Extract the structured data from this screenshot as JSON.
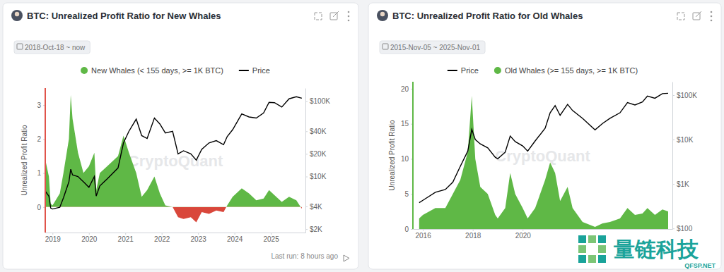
{
  "chart_data": [
    {
      "type": "area",
      "title": "BTC: Unrealized Profit Ratio for New Whales",
      "subtitle": "2018-Oct-18 ~ now",
      "y_label": "Unrealized Profit Ratio",
      "legend": "top",
      "log": "y2",
      "x": [
        2018.8,
        2018.9,
        2018.95,
        2019.0,
        2019.2,
        2019.3,
        2019.45,
        2019.5,
        2019.55,
        2019.7,
        2019.85,
        2020.0,
        2020.15,
        2020.2,
        2020.3,
        2020.5,
        2020.8,
        2020.95,
        2021.1,
        2021.3,
        2021.45,
        2021.6,
        2021.8,
        2021.95,
        2022.1,
        2022.3,
        2022.45,
        2022.6,
        2022.8,
        2022.95,
        2023.1,
        2023.3,
        2023.5,
        2023.7,
        2023.8,
        2023.95,
        2024.2,
        2024.4,
        2024.6,
        2024.8,
        2024.95,
        2025.1,
        2025.3,
        2025.5,
        2025.7,
        2025.85
      ],
      "series": [
        {
          "name": "New Whales (< 155 days, >= 1K BTC)",
          "type": "area",
          "colors": [
            "#5fb846",
            "#d9473b"
          ],
          "values": [
            1.4,
            0.9,
            0.1,
            0.05,
            0.4,
            1.0,
            2.0,
            3.3,
            2.6,
            1.6,
            1.0,
            1.2,
            1.6,
            0.5,
            1.0,
            1.2,
            1.5,
            2.1,
            1.6,
            1.0,
            0.3,
            0.5,
            0.9,
            0.4,
            0.05,
            0,
            -0.3,
            -0.35,
            -0.3,
            -0.45,
            -0.15,
            -0.2,
            -0.1,
            -0.15,
            0.05,
            0.3,
            0.55,
            0.4,
            0.2,
            0.25,
            0.5,
            0.35,
            0.15,
            0.3,
            0.2,
            -0.05
          ]
        },
        {
          "name": "Price",
          "type": "line",
          "color": "#000000",
          "axis": "y2",
          "values": [
            6400,
            5500,
            3800,
            3700,
            3900,
            5200,
            8500,
            12500,
            10500,
            10000,
            8500,
            7200,
            10000,
            5500,
            7500,
            9300,
            13000,
            28000,
            40000,
            58000,
            35000,
            32000,
            60000,
            50000,
            38000,
            40000,
            20000,
            22000,
            20000,
            16500,
            23000,
            28000,
            30000,
            26500,
            34000,
            42000,
            68000,
            62000,
            60000,
            70000,
            97000,
            96000,
            84000,
            108000,
            115000,
            110000
          ]
        }
      ],
      "xlim": [
        2018.8,
        2025.95
      ],
      "xticks": [
        2019,
        2020,
        2021,
        2022,
        2023,
        2024,
        2025
      ],
      "ylim": [
        -0.75,
        3.5
      ],
      "yticks": [
        0,
        1,
        2,
        3
      ],
      "y2lim": [
        1800,
        150000
      ],
      "y2ticks": [
        {
          "value": 2000,
          "label": "$2K"
        },
        {
          "value": 4000,
          "label": "$4K"
        },
        {
          "value": 10000,
          "label": "$10K"
        },
        {
          "value": 20000,
          "label": "$20K"
        },
        {
          "value": 40000,
          "label": "$40K"
        },
        {
          "value": 100000,
          "label": "$100K"
        }
      ],
      "annotations": [
        "CryptoQuant",
        "Last run: 8 hours ago"
      ]
    },
    {
      "type": "area",
      "title": "BTC: Unrealized Profit Ratio for Old Whales",
      "subtitle": "2015-Nov-05 ~ 2025-Nov-01",
      "y_label": "Unrealized Profit Ratio",
      "legend": "top",
      "log": "y2",
      "x": [
        2015.85,
        2016.0,
        2016.5,
        2016.9,
        2017.2,
        2017.5,
        2017.8,
        2017.96,
        2018.1,
        2018.3,
        2018.6,
        2018.9,
        2019.0,
        2019.3,
        2019.5,
        2019.7,
        2020.0,
        2020.2,
        2020.5,
        2020.9,
        2021.1,
        2021.3,
        2021.5,
        2021.8,
        2022.0,
        2022.4,
        2022.9,
        2023.2,
        2023.5,
        2023.9,
        2024.2,
        2024.5,
        2024.8,
        2025.0,
        2025.3,
        2025.6,
        2025.83
      ],
      "series": [
        {
          "name": "Price",
          "type": "line",
          "color": "#000000",
          "axis": "y2",
          "values": [
            380,
            430,
            650,
            750,
            1100,
            2500,
            5500,
            17000,
            10000,
            8000,
            6500,
            4000,
            3700,
            5200,
            12000,
            9000,
            7200,
            5500,
            9300,
            18000,
            40000,
            58000,
            35000,
            62000,
            45000,
            30000,
            16500,
            23000,
            30000,
            40000,
            68000,
            60000,
            70000,
            95000,
            85000,
            108000,
            110000
          ]
        },
        {
          "name": "Old Whales (>= 155 days, >= 1K BTC)",
          "type": "area",
          "color": "#5fb846",
          "values": [
            1.5,
            2,
            3,
            3,
            5,
            7,
            11,
            19,
            10,
            6,
            5,
            2,
            1.5,
            3,
            8,
            5,
            3,
            1.5,
            3,
            7,
            9.5,
            8,
            4,
            6,
            3,
            1,
            0.3,
            0.8,
            1,
            1.5,
            3,
            2,
            2.2,
            3,
            2,
            2.8,
            2.5
          ]
        }
      ],
      "xlim": [
        2015.6,
        2026.0
      ],
      "xticks": [
        2016,
        2018,
        2020
      ],
      "ylim": [
        0,
        21
      ],
      "yticks": [
        0,
        5,
        10,
        15,
        20
      ],
      "y2lim": [
        97,
        200000
      ],
      "y2ticks": [
        {
          "value": 100,
          "label": "$100"
        },
        {
          "value": 1000,
          "label": "$1K"
        },
        {
          "value": 10000,
          "label": "$10K"
        },
        {
          "value": 100000,
          "label": "$100K"
        }
      ],
      "annotations": [
        "CryptoQuant",
        "量链科技",
        "QFSP.NET"
      ]
    }
  ]
}
